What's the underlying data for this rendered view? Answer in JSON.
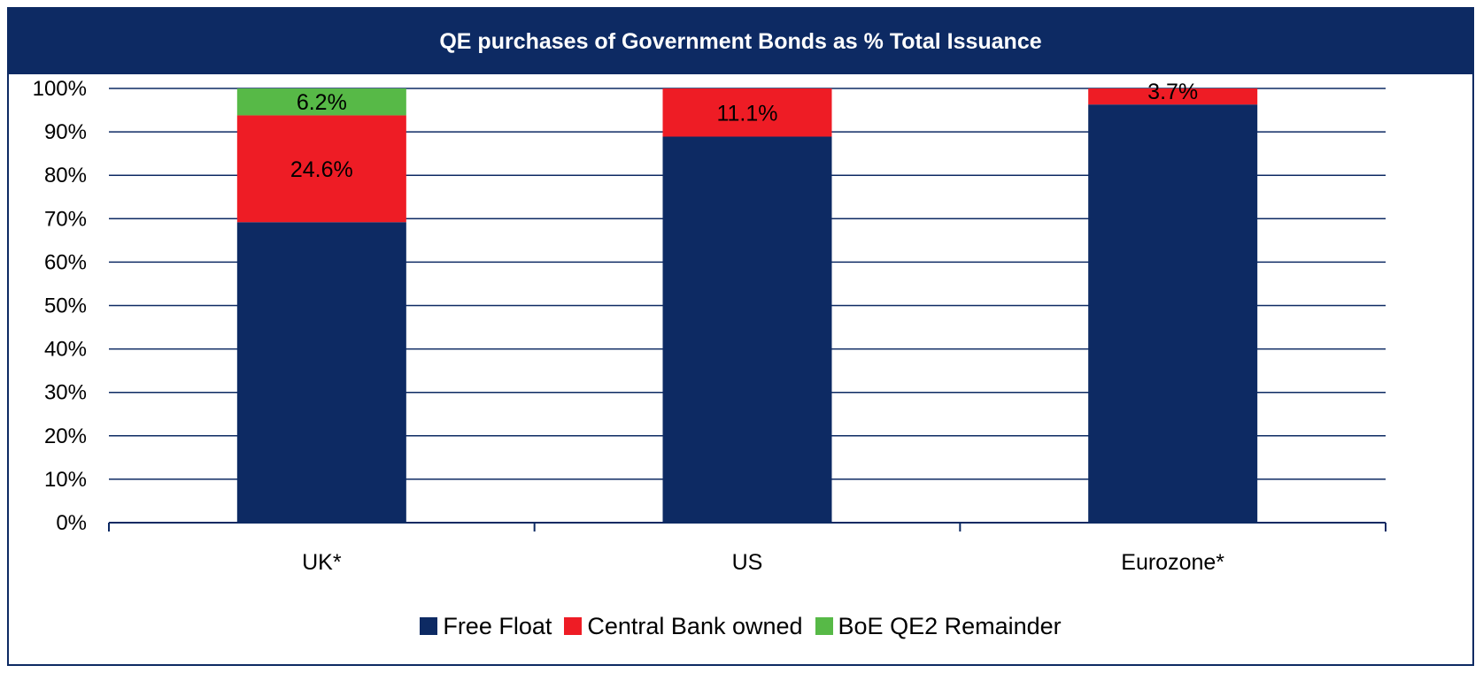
{
  "chart_data": {
    "type": "bar",
    "stacked": true,
    "title": "QE purchases of Government Bonds as % Total Issuance",
    "categories": [
      "UK*",
      "US",
      "Eurozone*"
    ],
    "series": [
      {
        "name": "Free Float",
        "color": "#0d2a63",
        "values": [
          69.2,
          88.9,
          96.3
        ]
      },
      {
        "name": "Central Bank owned",
        "color": "#ee1c25",
        "values": [
          24.6,
          11.1,
          3.7
        ],
        "labels": [
          "24.6%",
          "11.1%",
          "3.7%"
        ]
      },
      {
        "name": "BoE QE2 Remainder",
        "color": "#57b947",
        "values": [
          6.2,
          0,
          0
        ],
        "labels": [
          "6.2%",
          "",
          ""
        ]
      }
    ],
    "ylim": [
      0,
      100
    ],
    "yticks": [
      "0%",
      "10%",
      "20%",
      "30%",
      "40%",
      "50%",
      "60%",
      "70%",
      "80%",
      "90%",
      "100%"
    ],
    "grid": true,
    "legend_position": "bottom"
  }
}
